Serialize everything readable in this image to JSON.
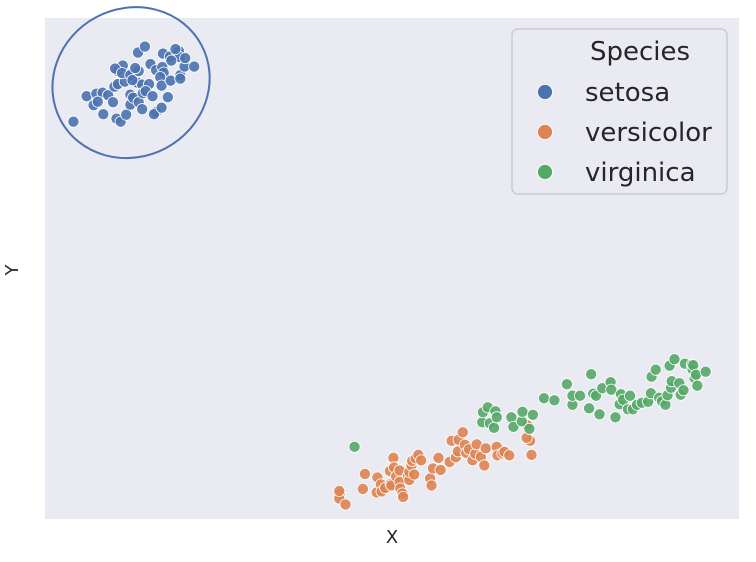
{
  "chart_data": {
    "type": "scatter",
    "title": "",
    "xlabel": "X",
    "ylabel": "Y",
    "xlim": [
      0,
      100
    ],
    "ylim": [
      0,
      100
    ],
    "grid": false,
    "legend": {
      "title": "Species",
      "position": "top-right"
    },
    "series": [
      {
        "name": "setosa",
        "color": "#4C72B0",
        "points": [
          [
            4.1,
            79.3
          ],
          [
            6.0,
            84.4
          ],
          [
            7.0,
            82.6
          ],
          [
            7.4,
            84.9
          ],
          [
            8.4,
            80.8
          ],
          [
            8.3,
            85.1
          ],
          [
            7.6,
            83.3
          ],
          [
            9.1,
            84.6
          ],
          [
            9.8,
            83.2
          ],
          [
            10.3,
            79.9
          ],
          [
            10.9,
            79.3
          ],
          [
            11.7,
            80.7
          ],
          [
            12.3,
            82.7
          ],
          [
            10.0,
            86.3
          ],
          [
            10.5,
            86.8
          ],
          [
            10.5,
            89.4
          ],
          [
            11.2,
            90.5
          ],
          [
            12.0,
            88.4
          ],
          [
            11.5,
            87.3
          ],
          [
            13.3,
            87.1
          ],
          [
            14.0,
            86.7
          ],
          [
            12.3,
            84.7
          ],
          [
            12.7,
            84.1
          ],
          [
            13.5,
            83.2
          ],
          [
            14.1,
            85.0
          ],
          [
            10.1,
            89.9
          ],
          [
            11.1,
            89.0
          ],
          [
            12.3,
            88.6
          ],
          [
            12.6,
            87.6
          ],
          [
            13.5,
            89.4
          ],
          [
            13.0,
            90.0
          ],
          [
            13.4,
            93.1
          ],
          [
            14.4,
            94.3
          ],
          [
            15.2,
            90.8
          ],
          [
            16.0,
            89.6
          ],
          [
            16.9,
            90.2
          ],
          [
            17.1,
            89.1
          ],
          [
            16.6,
            88.2
          ],
          [
            16.8,
            86.5
          ],
          [
            15.0,
            86.8
          ],
          [
            14.5,
            85.4
          ],
          [
            15.5,
            84.4
          ],
          [
            16.0,
            81.2
          ],
          [
            15.7,
            80.8
          ],
          [
            14.0,
            81.8
          ],
          [
            16.8,
            82.1
          ],
          [
            17.7,
            84.2
          ],
          [
            18.1,
            87.5
          ],
          [
            19.5,
            88.6
          ],
          [
            17.0,
            92.9
          ],
          [
            18.0,
            92.3
          ],
          [
            19.1,
            93.1
          ],
          [
            19.3,
            93.4
          ],
          [
            19.4,
            92.2
          ],
          [
            20.1,
            90.3
          ],
          [
            21.5,
            90.3
          ],
          [
            20.2,
            92.0
          ],
          [
            18.8,
            93.8
          ],
          [
            18.2,
            91.5
          ],
          [
            19.5,
            87.9
          ]
        ]
      },
      {
        "name": "versicolor",
        "color": "#DD8452",
        "points": [
          [
            42.5,
            5.0
          ],
          [
            42.4,
            4.1
          ],
          [
            42.4,
            5.6
          ],
          [
            43.3,
            2.9
          ],
          [
            46.1,
            9.0
          ],
          [
            45.8,
            6.0
          ],
          [
            47.8,
            5.3
          ],
          [
            47.9,
            8.3
          ],
          [
            48.4,
            6.9
          ],
          [
            48.5,
            5.5
          ],
          [
            49.0,
            6.2
          ],
          [
            49.7,
            9.6
          ],
          [
            49.8,
            7.0
          ],
          [
            49.9,
            6.7
          ],
          [
            50.2,
            12.2
          ],
          [
            50.3,
            10.3
          ],
          [
            50.6,
            8.5
          ],
          [
            51.1,
            9.7
          ],
          [
            51.1,
            7.4
          ],
          [
            51.2,
            6.1
          ],
          [
            51.5,
            5.1
          ],
          [
            51.6,
            4.4
          ],
          [
            52.3,
            8.6
          ],
          [
            52.5,
            7.8
          ],
          [
            52.5,
            9.4
          ],
          [
            52.8,
            10.7
          ],
          [
            52.9,
            11.6
          ],
          [
            53.2,
            8.9
          ],
          [
            53.4,
            12.1
          ],
          [
            53.8,
            12.8
          ],
          [
            54.2,
            11.7
          ],
          [
            55.5,
            8.1
          ],
          [
            55.7,
            6.7
          ],
          [
            55.9,
            10.1
          ],
          [
            56.7,
            12.2
          ],
          [
            57.0,
            9.8
          ],
          [
            58.3,
            11.4
          ],
          [
            58.6,
            15.6
          ],
          [
            59.2,
            12.3
          ],
          [
            59.5,
            13.5
          ],
          [
            59.6,
            15.8
          ],
          [
            60.2,
            17.3
          ],
          [
            60.5,
            14.8
          ],
          [
            60.7,
            13.2
          ],
          [
            61.1,
            13.9
          ],
          [
            61.6,
            11.7
          ],
          [
            62.0,
            13.0
          ],
          [
            62.2,
            14.9
          ],
          [
            62.8,
            12.4
          ],
          [
            63.3,
            10.7
          ],
          [
            63.5,
            14.1
          ],
          [
            65.1,
            14.4
          ],
          [
            65.2,
            12.7
          ],
          [
            65.9,
            13.1
          ],
          [
            66.2,
            13.4
          ],
          [
            66.9,
            12.7
          ],
          [
            69.5,
            18.7
          ],
          [
            69.9,
            15.6
          ],
          [
            70.1,
            12.8
          ],
          [
            69.4,
            16.2
          ]
        ]
      },
      {
        "name": "virginica",
        "color": "#55A868",
        "points": [
          [
            44.6,
            14.4
          ],
          [
            63.0,
            19.3
          ],
          [
            63.1,
            21.3
          ],
          [
            63.8,
            22.3
          ],
          [
            64.1,
            19.1
          ],
          [
            64.7,
            18.2
          ],
          [
            64.9,
            21.5
          ],
          [
            65.1,
            20.3
          ],
          [
            67.2,
            20.3
          ],
          [
            67.5,
            18.4
          ],
          [
            68.7,
            19.5
          ],
          [
            68.8,
            21.4
          ],
          [
            69.8,
            18.0
          ],
          [
            70.3,
            20.8
          ],
          [
            71.9,
            24.1
          ],
          [
            73.4,
            23.7
          ],
          [
            75.2,
            26.9
          ],
          [
            76.0,
            22.8
          ],
          [
            76.0,
            24.6
          ],
          [
            77.1,
            24.6
          ],
          [
            78.4,
            22.1
          ],
          [
            78.7,
            28.9
          ],
          [
            79.0,
            25.0
          ],
          [
            79.4,
            24.6
          ],
          [
            79.9,
            20.9
          ],
          [
            80.3,
            26.1
          ],
          [
            81.5,
            27.3
          ],
          [
            81.6,
            25.8
          ],
          [
            82.2,
            20.3
          ],
          [
            82.8,
            22.9
          ],
          [
            83.0,
            24.9
          ],
          [
            83.3,
            23.8
          ],
          [
            84.0,
            21.9
          ],
          [
            84.3,
            24.6
          ],
          [
            84.7,
            21.9
          ],
          [
            85.3,
            22.8
          ],
          [
            86.0,
            23.2
          ],
          [
            86.9,
            23.4
          ],
          [
            87.3,
            25.1
          ],
          [
            87.4,
            28.4
          ],
          [
            88.0,
            29.8
          ],
          [
            88.5,
            24.2
          ],
          [
            88.9,
            23.5
          ],
          [
            89.4,
            22.8
          ],
          [
            89.7,
            24.7
          ],
          [
            90.0,
            30.6
          ],
          [
            90.2,
            26.2
          ],
          [
            90.3,
            27.5
          ],
          [
            90.7,
            31.9
          ],
          [
            91.4,
            27.1
          ],
          [
            91.6,
            24.8
          ],
          [
            92.0,
            25.7
          ],
          [
            92.2,
            31.0
          ],
          [
            93.2,
            30.8
          ],
          [
            93.3,
            29.9
          ],
          [
            93.4,
            30.7
          ],
          [
            93.6,
            28.1
          ],
          [
            93.8,
            28.8
          ],
          [
            94.0,
            26.6
          ],
          [
            95.2,
            29.4
          ]
        ]
      }
    ],
    "annotations": [
      {
        "type": "ellipse",
        "series": "setosa",
        "color": "#4C72B0",
        "center": [
          12.4,
          87.1
        ],
        "semi_axes": [
          11.5,
          14.8
        ],
        "rotation_deg": -28
      }
    ]
  }
}
